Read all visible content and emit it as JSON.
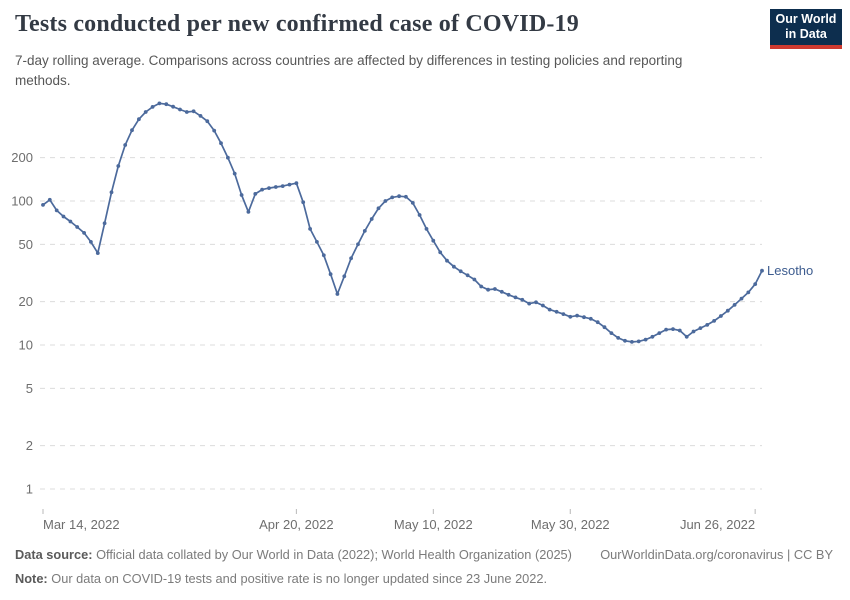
{
  "header": {
    "title": "Tests conducted per new confirmed case of COVID-19",
    "subtitle": "7-day rolling average. Comparisons across countries are affected by differences in testing policies and reporting methods.",
    "logo": {
      "line1": "Our World",
      "line2": "in Data",
      "bg_color": "#0d2e4e",
      "accent_color": "#cf3a30"
    }
  },
  "chart_data": {
    "type": "line",
    "title": "Tests conducted per new confirmed case of COVID-19",
    "yscale": "log",
    "ylim": [
      1,
      500
    ],
    "y_ticks": [
      200,
      100,
      50,
      20,
      10,
      5,
      2,
      1
    ],
    "grid": true,
    "x_ticks": [
      {
        "label": "Mar 14, 2022",
        "day": 0
      },
      {
        "label": "Apr 20, 2022",
        "day": 37
      },
      {
        "label": "May 10, 2022",
        "day": 57
      },
      {
        "label": "May 30, 2022",
        "day": 77
      },
      {
        "label": "Jun 26, 2022",
        "day": 104
      }
    ],
    "series": [
      {
        "name": "Lesotho",
        "color": "#4c6a9c",
        "label_color": "#3d5c8f",
        "start_date": "2022-03-14",
        "values": [
          94,
          102,
          86,
          78,
          72,
          66,
          60,
          52,
          43.5,
          70,
          115,
          175,
          245,
          310,
          370,
          415,
          450,
          476,
          470,
          452,
          432,
          415,
          420,
          390,
          358,
          308,
          252,
          200,
          155,
          110,
          84,
          112,
          120,
          123,
          125,
          127,
          130,
          133,
          98,
          64,
          52,
          42,
          31,
          22.6,
          30,
          40,
          50,
          62,
          75,
          89,
          100,
          106,
          108,
          107,
          97,
          80,
          64,
          53,
          44,
          38.5,
          35,
          32.5,
          30.5,
          28.5,
          25.5,
          24.2,
          24.5,
          23.4,
          22.3,
          21.4,
          20.6,
          19.4,
          19.8,
          18.8,
          17.6,
          17.0,
          16.4,
          15.7,
          16.0,
          15.6,
          15.2,
          14.4,
          13.3,
          12.1,
          11.2,
          10.7,
          10.5,
          10.6,
          10.9,
          11.4,
          12.1,
          12.8,
          12.9,
          12.6,
          11.4,
          12.4,
          13.1,
          13.8,
          14.7,
          15.9,
          17.3,
          19.0,
          21.0,
          23.2,
          26.5,
          32.8
        ]
      }
    ],
    "gridline_color": "#dcdcdc",
    "axis_label_color": "#6e6e6e"
  },
  "footer": {
    "source_label": "Data source:",
    "source_text": " Official data collated by Our World in Data (2022); World Health Organization (2025)",
    "link_text": "OurWorldinData.org/coronavirus | CC BY",
    "note_label": "Note:",
    "note_text": " Our data on COVID-19 tests and positive rate is no longer updated since 23 June 2022."
  }
}
